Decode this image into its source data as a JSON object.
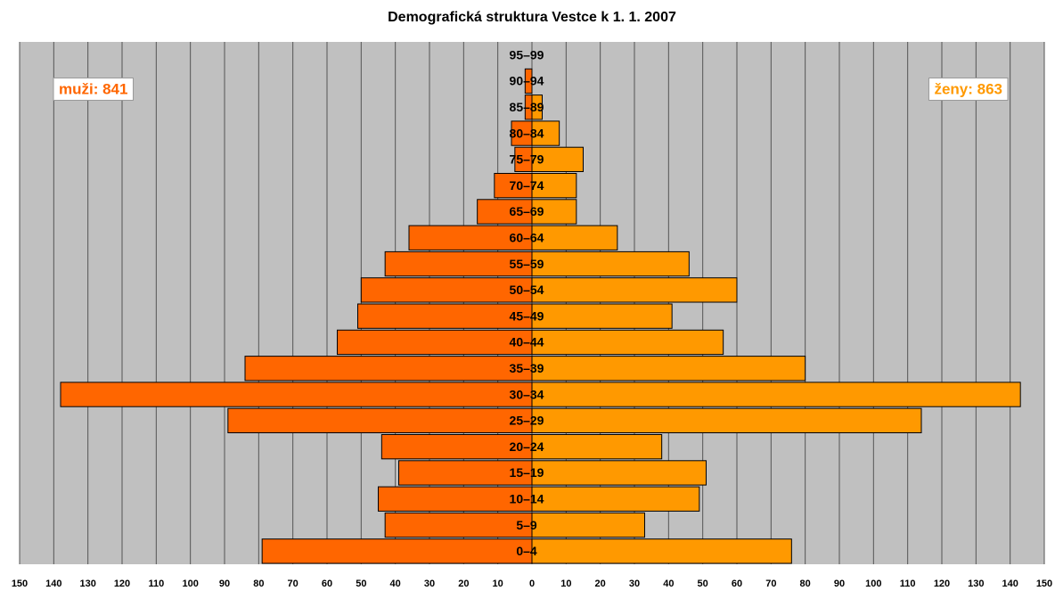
{
  "chart_data": {
    "type": "population-pyramid",
    "title": "Demografická struktura Vestce k 1. 1. 2007",
    "categories": [
      "0–4",
      "5–9",
      "10–14",
      "15–19",
      "20–24",
      "25–29",
      "30–34",
      "35–39",
      "40–44",
      "45–49",
      "50–54",
      "55–59",
      "60–64",
      "65–69",
      "70–74",
      "75–79",
      "80–84",
      "85–89",
      "90–94",
      "95–99"
    ],
    "series": [
      {
        "name": "muži",
        "color": "#ff6600",
        "side": "left",
        "values": [
          79,
          43,
          45,
          39,
          44,
          89,
          138,
          84,
          57,
          51,
          50,
          43,
          36,
          16,
          11,
          5,
          6,
          2,
          2,
          0
        ]
      },
      {
        "name": "ženy",
        "color": "#ff9900",
        "side": "right",
        "values": [
          76,
          33,
          49,
          51,
          38,
          114,
          143,
          80,
          56,
          41,
          60,
          46,
          25,
          13,
          13,
          15,
          8,
          3,
          0,
          0
        ]
      }
    ],
    "annotations": [
      {
        "text": "muži: 841",
        "color": "#ff6600",
        "position": "top-left"
      },
      {
        "text": "ženy: 863",
        "color": "#ff9900",
        "position": "top-right"
      }
    ],
    "xlim": [
      -150,
      150
    ],
    "xticks": [
      {
        "value": -150,
        "label": "150"
      },
      {
        "value": -140,
        "label": "140"
      },
      {
        "value": -130,
        "label": "130"
      },
      {
        "value": -120,
        "label": "120"
      },
      {
        "value": -110,
        "label": "110"
      },
      {
        "value": -100,
        "label": "100"
      },
      {
        "value": -90,
        "label": "90"
      },
      {
        "value": -80,
        "label": "80"
      },
      {
        "value": -70,
        "label": "70"
      },
      {
        "value": -60,
        "label": "60"
      },
      {
        "value": -50,
        "label": "50"
      },
      {
        "value": -40,
        "label": "40"
      },
      {
        "value": -30,
        "label": "30"
      },
      {
        "value": -20,
        "label": "20"
      },
      {
        "value": -10,
        "label": "10"
      },
      0,
      10,
      20,
      30,
      40,
      50,
      60,
      70,
      80,
      90,
      100,
      110,
      120,
      130,
      140,
      150
    ],
    "grid": true,
    "background": "#c0c0c0"
  }
}
